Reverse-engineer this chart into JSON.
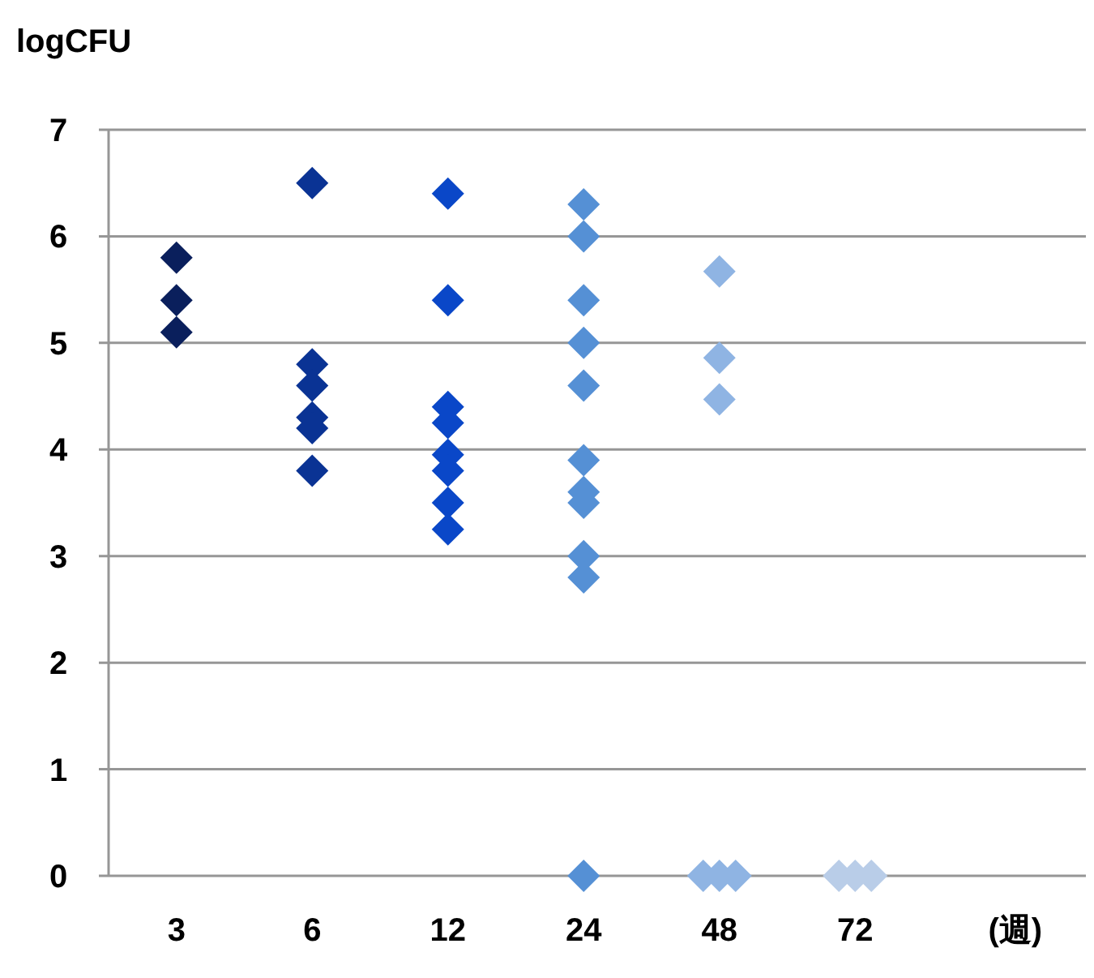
{
  "chart_data": {
    "type": "scatter",
    "ylabel": "logCFU",
    "xlabel": "(週)",
    "categories": [
      "3",
      "6",
      "12",
      "24",
      "48",
      "72"
    ],
    "ylim": [
      0,
      7
    ],
    "yticks": [
      0,
      1,
      2,
      3,
      4,
      5,
      6,
      7
    ],
    "grid": "y",
    "marker": "diamond",
    "series": [
      {
        "color": "#0a1f5c",
        "x": [
          "3",
          "3",
          "3"
        ],
        "values": [
          5.8,
          5.4,
          5.1
        ]
      },
      {
        "color": "#0a3394",
        "x": [
          "6",
          "6",
          "6",
          "6",
          "6",
          "6"
        ],
        "values": [
          6.5,
          4.8,
          4.6,
          4.3,
          4.2,
          3.8
        ]
      },
      {
        "color": "#0a47c8",
        "x": [
          "12",
          "12",
          "12",
          "12",
          "12",
          "12",
          "12",
          "12"
        ],
        "values": [
          6.4,
          5.4,
          4.4,
          4.25,
          3.95,
          3.8,
          3.5,
          3.25
        ]
      },
      {
        "color": "#5590d5",
        "x": [
          "24",
          "24",
          "24",
          "24",
          "24",
          "24",
          "24",
          "24",
          "24",
          "24",
          "24"
        ],
        "values": [
          6.3,
          6.0,
          5.4,
          5.0,
          4.6,
          3.9,
          3.6,
          3.5,
          3.0,
          2.8,
          0
        ]
      },
      {
        "color": "#8fb4e3",
        "x": [
          "48",
          "48",
          "48",
          "48",
          "48",
          "48"
        ],
        "values": [
          5.67,
          4.86,
          4.47,
          0,
          0,
          0
        ]
      },
      {
        "color": "#b9cde8",
        "x": [
          "72",
          "72",
          "72"
        ],
        "values": [
          0,
          0,
          0
        ]
      }
    ]
  }
}
